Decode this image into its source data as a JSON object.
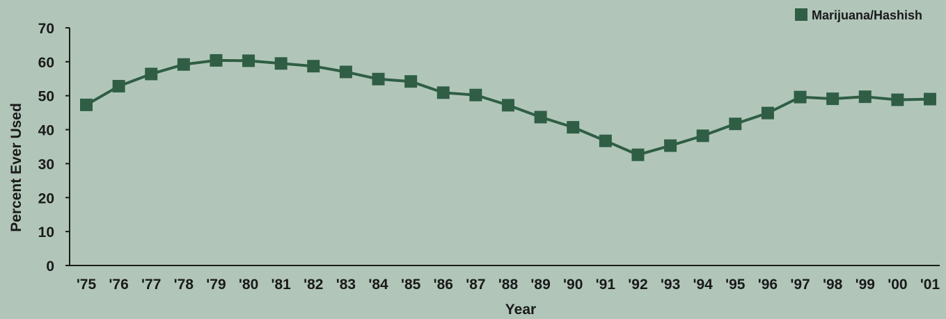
{
  "chart_data": {
    "type": "line",
    "title": "",
    "xlabel": "Year",
    "ylabel": "Percent Ever Used",
    "categories": [
      "'75",
      "'76",
      "'77",
      "'78",
      "'79",
      "'80",
      "'81",
      "'82",
      "'83",
      "'84",
      "'85",
      "'86",
      "'87",
      "'88",
      "'89",
      "'90",
      "'91",
      "'92",
      "'93",
      "'94",
      "'95",
      "'96",
      "'97",
      "'98",
      "'99",
      "'00",
      "'01"
    ],
    "yticks": [
      "0",
      "10",
      "20",
      "30",
      "40",
      "50",
      "60",
      "70"
    ],
    "ylim": [
      0,
      70
    ],
    "grid": false,
    "legend_position": "top-right",
    "series": [
      {
        "name": "Marijuana/Hashish",
        "color": "#2f5e44",
        "values": [
          47.3,
          52.8,
          56.4,
          59.2,
          60.4,
          60.3,
          59.5,
          58.7,
          57.0,
          54.9,
          54.2,
          50.9,
          50.2,
          47.2,
          43.7,
          40.7,
          36.7,
          32.6,
          35.3,
          38.2,
          41.7,
          44.9,
          49.6,
          49.1,
          49.7,
          48.8,
          49.0
        ]
      }
    ]
  }
}
